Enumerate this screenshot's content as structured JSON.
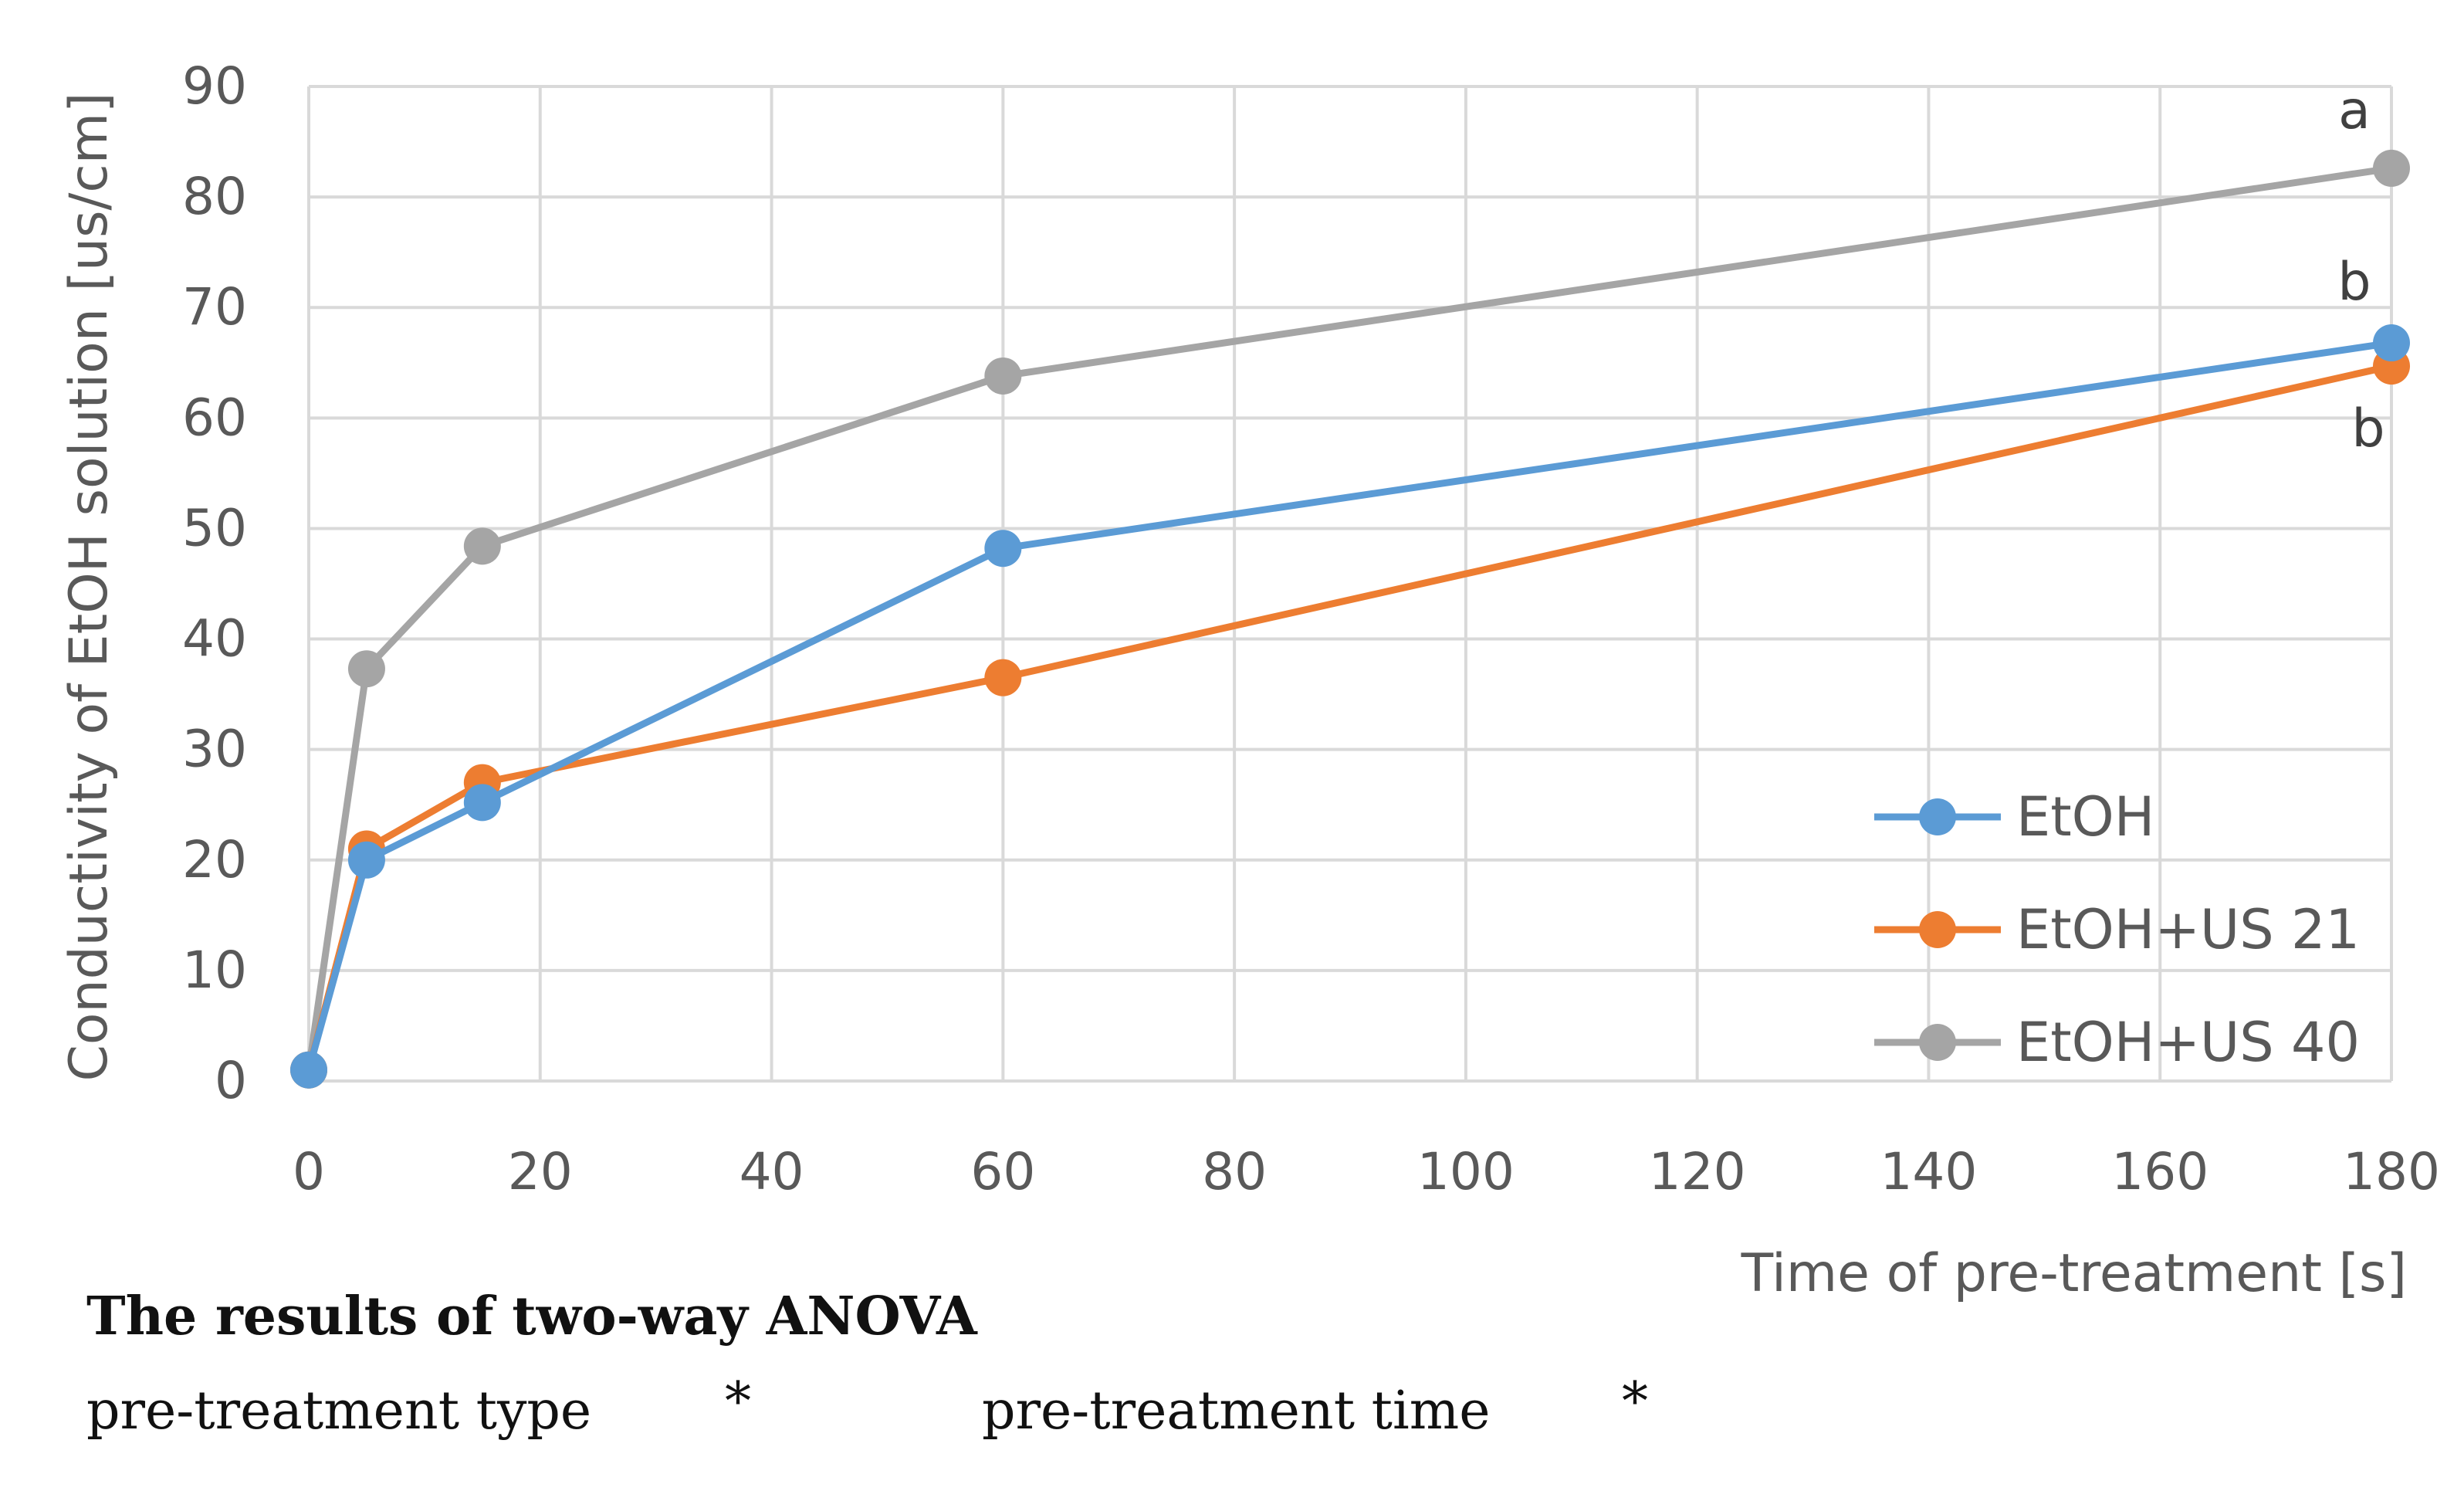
{
  "chart_data": {
    "type": "line",
    "title": "",
    "xlabel": "Time of pre-treatment [s]",
    "ylabel": "Conductivity of EtOH solution [us/cm]",
    "xlim": [
      0,
      180
    ],
    "ylim": [
      0,
      90
    ],
    "xticks": [
      0,
      20,
      40,
      60,
      80,
      100,
      120,
      140,
      160,
      180
    ],
    "yticks": [
      0,
      10,
      20,
      30,
      40,
      50,
      60,
      70,
      80,
      90
    ],
    "grid": true,
    "legend_position": "bottom-right",
    "x": [
      0,
      5,
      15,
      60,
      180
    ],
    "series": [
      {
        "name": "EtOH",
        "color": "#5b9bd5",
        "values": [
          1.0,
          20.0,
          25.2,
          48.2,
          66.8
        ]
      },
      {
        "name": "EtOH+US 21",
        "color": "#ed7d31",
        "values": [
          1.0,
          21.0,
          27.0,
          36.5,
          64.7
        ]
      },
      {
        "name": "EtOH+US 40",
        "color": "#a5a5a5",
        "values": [
          1.0,
          37.3,
          48.4,
          63.8,
          82.6
        ]
      }
    ],
    "annotations": [
      {
        "text": "a",
        "series": "EtOH+US 40",
        "x": 180
      },
      {
        "text": "b",
        "series": "EtOH",
        "x": 180
      },
      {
        "text": "b",
        "series": "EtOH+US 21",
        "x": 180
      }
    ]
  },
  "anova": {
    "title": "The results of two-way ANOVA",
    "factors": [
      {
        "label": "pre-treatment type",
        "result": "*"
      },
      {
        "label": "pre-treatment time",
        "result": "*"
      }
    ]
  }
}
